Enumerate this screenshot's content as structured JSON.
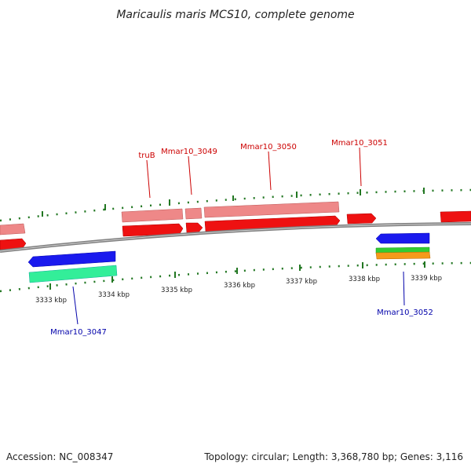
{
  "title": "Maricaulis maris MCS10, complete genome",
  "footer": {
    "accession": "Accession: NC_008347",
    "summary": "Topology: circular; Length: 3,368,780 bp; Genes: 3,116"
  },
  "colors": {
    "forward_cds": "#ee1111",
    "forward_gene": "#ee8888",
    "reverse_cds": "#1a1aee",
    "reverse_gene": "#33ee99",
    "reverse_green": "#33cc33",
    "reverse_orange": "#f59a1a",
    "tick": "#227722",
    "forward_label": "#cc0000",
    "reverse_label": "#0000aa",
    "backbone": "#808080"
  },
  "ruler": {
    "ticks": [
      {
        "label": "3333 kbp"
      },
      {
        "label": "3334 kbp"
      },
      {
        "label": "3335 kbp"
      },
      {
        "label": "3336 kbp"
      },
      {
        "label": "3337 kbp"
      },
      {
        "label": "3338 kbp"
      },
      {
        "label": "3339 kbp"
      }
    ]
  },
  "gene_labels": [
    {
      "name": "truB",
      "strand": "forward"
    },
    {
      "name": "Mmar10_3049",
      "strand": "forward"
    },
    {
      "name": "Mmar10_3050",
      "strand": "forward"
    },
    {
      "name": "Mmar10_3051",
      "strand": "forward"
    },
    {
      "name": "Mmar10_3047",
      "strand": "reverse"
    },
    {
      "name": "Mmar10_3052",
      "strand": "reverse"
    }
  ]
}
